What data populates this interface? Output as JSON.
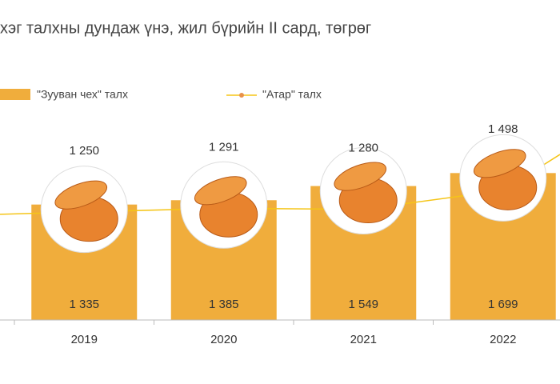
{
  "chart_data": {
    "type": "bar-line",
    "title": "хэг талхны дундаж үнэ, жил бүрийн II сард, төгрөг",
    "categories": [
      "2019",
      "2020",
      "2021",
      "2022"
    ],
    "ylim": [
      0,
      3700
    ],
    "series": [
      {
        "name": "\"Зууван чех\" талх",
        "type": "bar",
        "color": "#f0ad3c",
        "values": [
          1335,
          1385,
          1549,
          1699
        ],
        "value_labels": [
          "1 335",
          "1 385",
          "1 549",
          "1 699"
        ]
      },
      {
        "name": "\"Атар\" талх",
        "type": "line",
        "color": "#f5c518",
        "marker_color": "#e8914a",
        "values": [
          1250,
          1291,
          1280,
          1498
        ],
        "value_labels": [
          "1 250",
          "1 291",
          "1 280",
          "1 498"
        ]
      }
    ]
  }
}
